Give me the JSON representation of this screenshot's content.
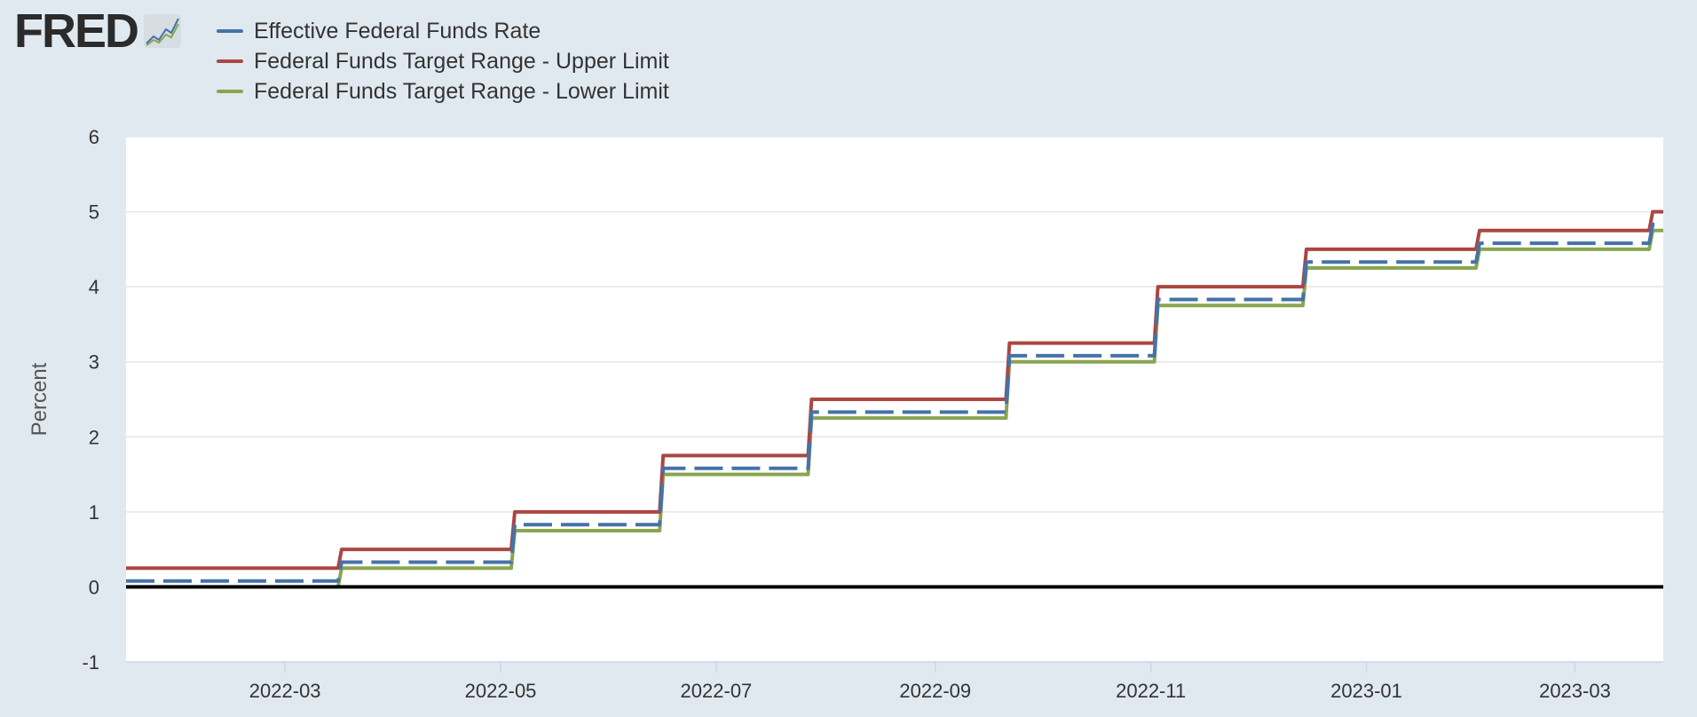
{
  "logo": {
    "text": "FRED",
    "icon": "line-chart-icon"
  },
  "colors": {
    "background": "#e1e9f0",
    "plot_background": "#ffffff",
    "gridline": "#e6e6e6",
    "zero_line": "#000000"
  },
  "chart_data": {
    "type": "line",
    "ylabel": "Percent",
    "xlabel": "",
    "ylim": [
      -1,
      6
    ],
    "yticks": [
      "-1",
      "0",
      "1",
      "2",
      "3",
      "4",
      "5",
      "6"
    ],
    "xlim": [
      "2022-01-15",
      "2023-03-26"
    ],
    "xticks": [
      {
        "date": "2022-03-01",
        "label": "2022-03"
      },
      {
        "date": "2022-05-01",
        "label": "2022-05"
      },
      {
        "date": "2022-07-01",
        "label": "2022-07"
      },
      {
        "date": "2022-09-01",
        "label": "2022-09"
      },
      {
        "date": "2022-11-01",
        "label": "2022-11"
      },
      {
        "date": "2023-01-01",
        "label": "2023-01"
      },
      {
        "date": "2023-03-01",
        "label": "2023-03"
      }
    ],
    "grid": true,
    "legend_position": "top-left",
    "series": [
      {
        "name": "Effective Federal Funds Rate",
        "color": "#4572a7",
        "dashed": true,
        "points": [
          [
            "2022-01-15",
            0.08
          ],
          [
            "2022-03-16",
            0.08
          ],
          [
            "2022-03-17",
            0.33
          ],
          [
            "2022-05-04",
            0.33
          ],
          [
            "2022-05-05",
            0.83
          ],
          [
            "2022-06-15",
            0.83
          ],
          [
            "2022-06-16",
            1.58
          ],
          [
            "2022-07-27",
            1.58
          ],
          [
            "2022-07-28",
            2.33
          ],
          [
            "2022-09-21",
            2.33
          ],
          [
            "2022-09-22",
            3.08
          ],
          [
            "2022-11-02",
            3.08
          ],
          [
            "2022-11-03",
            3.83
          ],
          [
            "2022-12-14",
            3.83
          ],
          [
            "2022-12-15",
            4.33
          ],
          [
            "2023-02-01",
            4.33
          ],
          [
            "2023-02-02",
            4.58
          ],
          [
            "2023-03-22",
            4.58
          ],
          [
            "2023-03-23",
            4.83
          ],
          [
            "2023-03-26",
            4.83
          ]
        ]
      },
      {
        "name": "Federal Funds Target Range - Upper Limit",
        "color": "#aa4643",
        "dashed": false,
        "points": [
          [
            "2022-01-15",
            0.25
          ],
          [
            "2022-03-16",
            0.25
          ],
          [
            "2022-03-17",
            0.5
          ],
          [
            "2022-05-04",
            0.5
          ],
          [
            "2022-05-05",
            1.0
          ],
          [
            "2022-06-15",
            1.0
          ],
          [
            "2022-06-16",
            1.75
          ],
          [
            "2022-07-27",
            1.75
          ],
          [
            "2022-07-28",
            2.5
          ],
          [
            "2022-09-21",
            2.5
          ],
          [
            "2022-09-22",
            3.25
          ],
          [
            "2022-11-02",
            3.25
          ],
          [
            "2022-11-03",
            4.0
          ],
          [
            "2022-12-14",
            4.0
          ],
          [
            "2022-12-15",
            4.5
          ],
          [
            "2023-02-01",
            4.5
          ],
          [
            "2023-02-02",
            4.75
          ],
          [
            "2023-03-22",
            4.75
          ],
          [
            "2023-03-23",
            5.0
          ],
          [
            "2023-03-26",
            5.0
          ]
        ]
      },
      {
        "name": "Federal Funds Target Range - Lower Limit",
        "color": "#89a54e",
        "dashed": false,
        "points": [
          [
            "2022-01-15",
            0.0
          ],
          [
            "2022-03-16",
            0.0
          ],
          [
            "2022-03-17",
            0.25
          ],
          [
            "2022-05-04",
            0.25
          ],
          [
            "2022-05-05",
            0.75
          ],
          [
            "2022-06-15",
            0.75
          ],
          [
            "2022-06-16",
            1.5
          ],
          [
            "2022-07-27",
            1.5
          ],
          [
            "2022-07-28",
            2.25
          ],
          [
            "2022-09-21",
            2.25
          ],
          [
            "2022-09-22",
            3.0
          ],
          [
            "2022-11-02",
            3.0
          ],
          [
            "2022-11-03",
            3.75
          ],
          [
            "2022-12-14",
            3.75
          ],
          [
            "2022-12-15",
            4.25
          ],
          [
            "2023-02-01",
            4.25
          ],
          [
            "2023-02-02",
            4.5
          ],
          [
            "2023-03-22",
            4.5
          ],
          [
            "2023-03-23",
            4.75
          ],
          [
            "2023-03-26",
            4.75
          ]
        ]
      }
    ]
  }
}
